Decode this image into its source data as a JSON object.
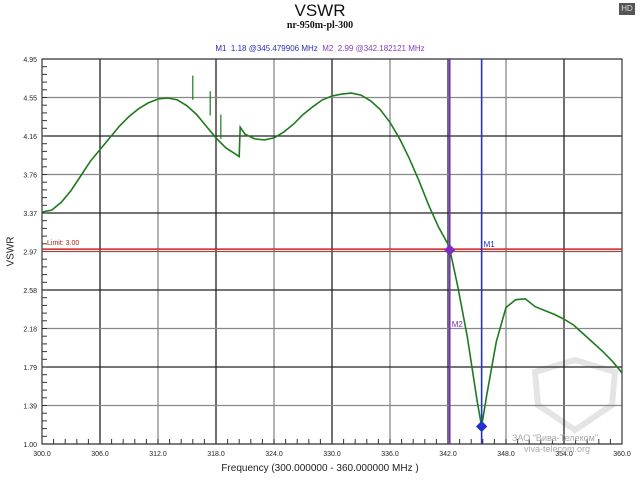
{
  "badge": {
    "hd_label": "HD"
  },
  "markers": {
    "m1_label": "M1",
    "m1_value": "1.18 @345.479906 MHz",
    "m2_label": "M2",
    "m2_value": "2.99 @342.182121 MHz"
  },
  "watermark": {
    "line1": "ЗАО \"Вива-Телеком\"",
    "line2": "viva-telecom.org"
  },
  "chart_data": {
    "type": "line",
    "title": "VSWR",
    "subtitle": "nr-950m-pl-300",
    "xlabel": "Frequency (300.000000 - 360.000000 MHz )",
    "ylabel": "VSWR",
    "xlim": [
      300,
      360
    ],
    "ylim": [
      1.0,
      4.95
    ],
    "x_ticks": [
      "300.0",
      "306.0",
      "312.0",
      "318.0",
      "324.0",
      "330.0",
      "336.0",
      "342.0",
      "348.0",
      "354.0",
      "360.0"
    ],
    "y_ticks": [
      "4.95",
      "4.55",
      "4.16",
      "3.76",
      "3.37",
      "2.97",
      "2.58",
      "2.18",
      "1.79",
      "1.39",
      "1.00"
    ],
    "grid": true,
    "limit_line": {
      "label": "Limit: 3.00",
      "value": 3.0,
      "color": "#cc2222"
    },
    "marker_lines": [
      {
        "name": "M1",
        "x": 345.479906,
        "y": 1.18,
        "color": "#2233cc"
      },
      {
        "name": "M2",
        "x": 342.182121,
        "y": 2.99,
        "color": "#7a2fc0"
      }
    ],
    "series": [
      {
        "name": "VSWR",
        "color": "#1f7a1f",
        "x": [
          300,
          301,
          302,
          303,
          304,
          305,
          306,
          307,
          308,
          309,
          310,
          311,
          312,
          313,
          314,
          315,
          316,
          317,
          318,
          319,
          320.4,
          320.5,
          321,
          322,
          323,
          324,
          325,
          326,
          327,
          328,
          329,
          330,
          331,
          332,
          333,
          334,
          335,
          336,
          337,
          338,
          339,
          340,
          341,
          342,
          342.2,
          343,
          344,
          345,
          345.48,
          346,
          347,
          348,
          349,
          350,
          351,
          352,
          353,
          354,
          355,
          356,
          357,
          358,
          359,
          360
        ],
        "values": [
          3.38,
          3.4,
          3.48,
          3.6,
          3.75,
          3.9,
          4.02,
          4.14,
          4.26,
          4.36,
          4.44,
          4.5,
          4.54,
          4.55,
          4.53,
          4.47,
          4.38,
          4.26,
          4.14,
          4.04,
          3.95,
          4.25,
          4.18,
          4.13,
          4.12,
          4.14,
          4.2,
          4.28,
          4.38,
          4.46,
          4.53,
          4.57,
          4.59,
          4.6,
          4.58,
          4.52,
          4.43,
          4.3,
          4.13,
          3.93,
          3.7,
          3.45,
          3.23,
          3.05,
          2.99,
          2.62,
          2.1,
          1.45,
          1.18,
          1.5,
          2.05,
          2.4,
          2.48,
          2.49,
          2.41,
          2.37,
          2.33,
          2.28,
          2.22,
          2.13,
          2.04,
          1.95,
          1.85,
          1.73
        ]
      }
    ]
  }
}
